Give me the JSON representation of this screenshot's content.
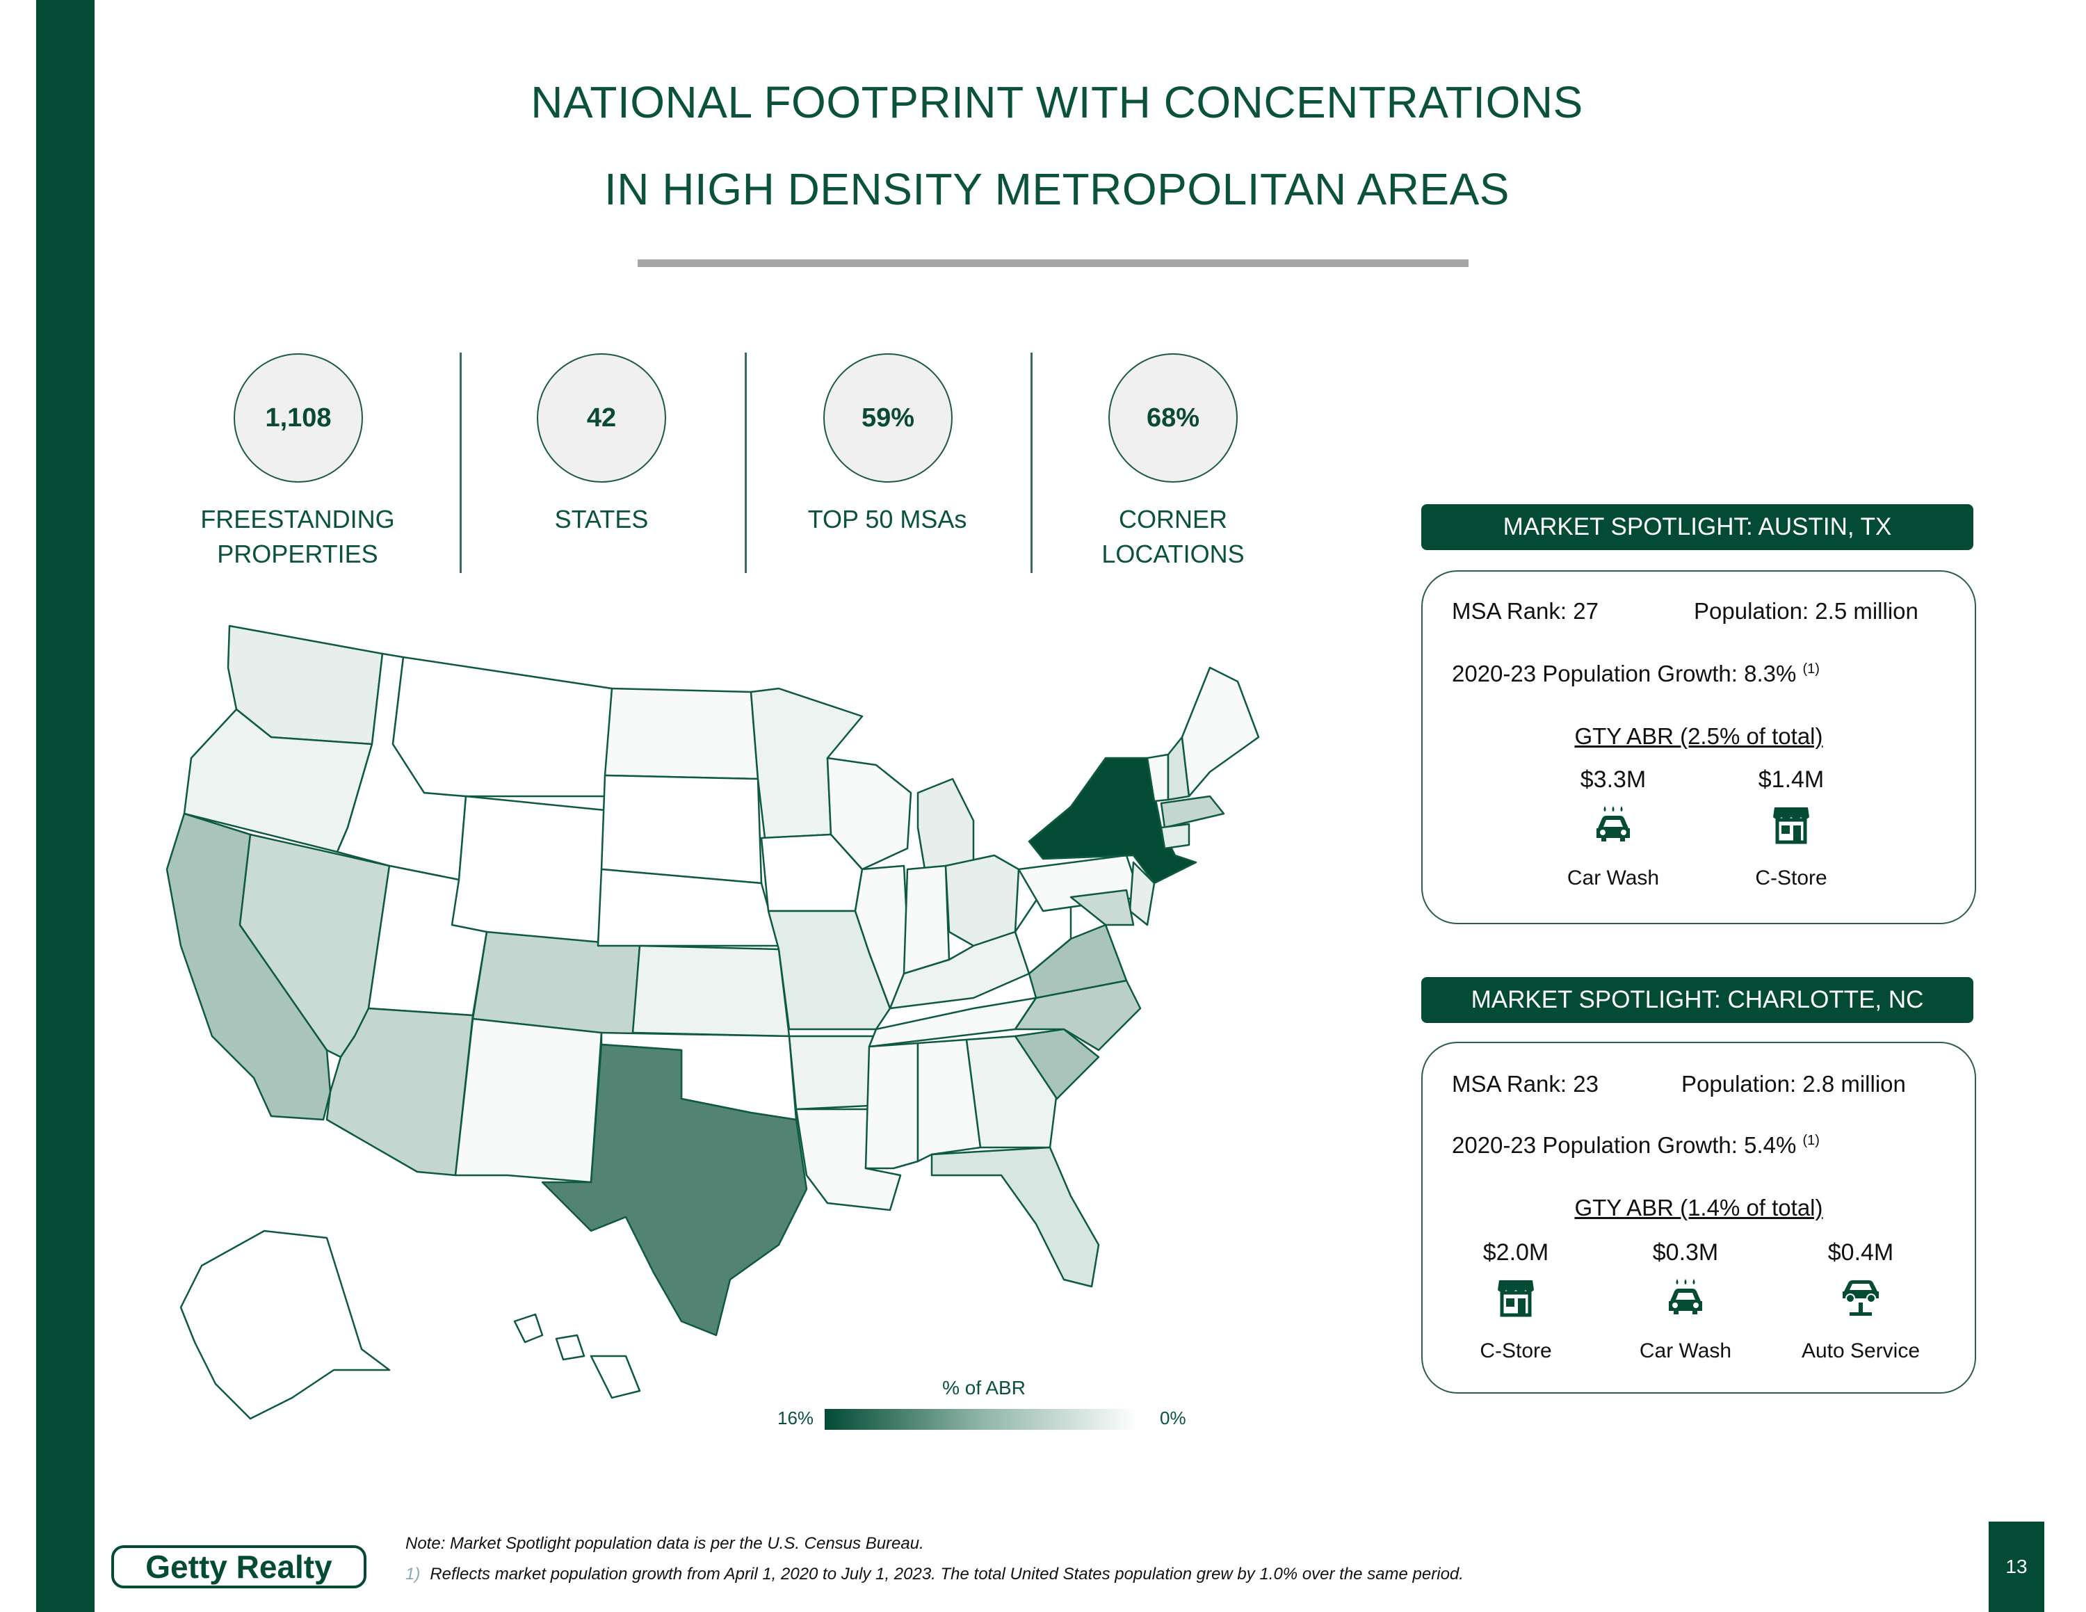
{
  "title": {
    "line1": "NATIONAL FOOTPRINT WITH CONCENTRATIONS",
    "line2": "IN HIGH DENSITY METROPOLITAN AREAS"
  },
  "stats": [
    {
      "value": "1,108",
      "label_line1": "FREESTANDING",
      "label_line2": "PROPERTIES"
    },
    {
      "value": "42",
      "label_line1": "STATES",
      "label_line2": ""
    },
    {
      "value": "59%",
      "label_line1": "TOP 50 MSAs",
      "label_line2": ""
    },
    {
      "value": "68%",
      "label_line1": "CORNER",
      "label_line2": "LOCATIONS"
    }
  ],
  "spotlight_austin": {
    "header": "MARKET SPOTLIGHT: AUSTIN, TX",
    "msa_rank": "MSA Rank: 27",
    "population": "Population: 2.5 million",
    "growth": "2020-23 Population Growth: 8.3%",
    "growth_note": "(1)",
    "abr_title": "GTY ABR (2.5% of total)",
    "items": [
      {
        "value": "$3.3M",
        "caption": "Car Wash",
        "icon": "car-wash-icon"
      },
      {
        "value": "$1.4M",
        "caption": "C-Store",
        "icon": "c-store-icon"
      }
    ]
  },
  "spotlight_charlotte": {
    "header": "MARKET SPOTLIGHT: CHARLOTTE, NC",
    "msa_rank": "MSA Rank: 23",
    "population": "Population: 2.8 million",
    "growth": "2020-23 Population Growth: 5.4%",
    "growth_note": "(1)",
    "abr_title": "GTY ABR (1.4% of total)",
    "items": [
      {
        "value": "$2.0M",
        "caption": "C-Store",
        "icon": "c-store-icon"
      },
      {
        "value": "$0.3M",
        "caption": "Car Wash",
        "icon": "car-wash-icon"
      },
      {
        "value": "$0.4M",
        "caption": "Auto Service",
        "icon": "auto-service-icon"
      }
    ]
  },
  "map": {
    "legend_title": "% of ABR",
    "legend_high": "16%",
    "legend_low": "0%",
    "colors": {
      "darkest": "#034b35",
      "dark": "#538373",
      "medium": "#a9c4bb",
      "light": "#d8e6e1",
      "lighter": "#ecf3f0",
      "lightest": "#f7faf9",
      "none": "#ffffff",
      "border": "#0d5a40"
    }
  },
  "footer": {
    "note": "Note: Market Spotlight population data is per the U.S. Census Bureau.",
    "footnote_num": "1)",
    "footnote": "Reflects market population growth from April 1, 2020 to July 1, 2023.  The total United States population grew by 1.0% over the same period.",
    "logo_text": "Getty Realty",
    "page_number": "13"
  }
}
